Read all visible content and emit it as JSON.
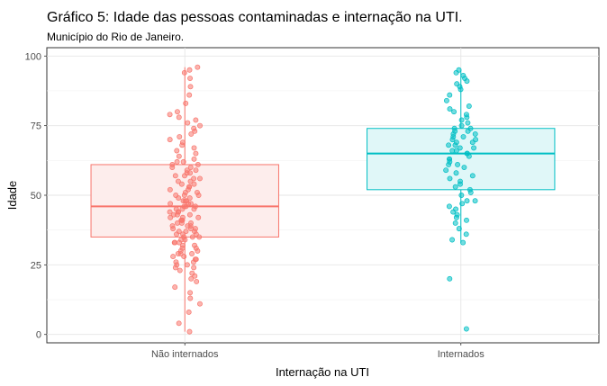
{
  "chart_data": {
    "type": "boxplot",
    "title": "Gráfico 5: Idade das pessoas contaminadas e internação na UTI.",
    "subtitle": "Município do Rio de Janeiro.",
    "xlabel": "Internação na UTI",
    "ylabel": "Idade",
    "ylim": [
      -3,
      103
    ],
    "yticks": [
      "0",
      "25",
      "50",
      "75",
      "100"
    ],
    "grid": true,
    "legend": "none",
    "categories": [
      "Não internados",
      "Internados"
    ],
    "series": [
      {
        "color": "#F8766D",
        "fill": "#FDEDEC",
        "box": {
          "min": 1,
          "q1": 35,
          "median": 46,
          "q3": 61,
          "max": 96
        },
        "points": [
          1,
          4,
          8,
          11,
          13,
          15,
          17,
          19,
          20,
          21,
          22,
          23,
          24,
          24,
          25,
          25,
          26,
          26,
          27,
          27,
          28,
          28,
          29,
          29,
          29,
          30,
          30,
          31,
          31,
          32,
          32,
          33,
          33,
          33,
          34,
          34,
          35,
          35,
          35,
          36,
          36,
          36,
          37,
          37,
          37,
          38,
          38,
          38,
          39,
          39,
          39,
          40,
          40,
          40,
          41,
          41,
          41,
          42,
          42,
          42,
          43,
          43,
          43,
          44,
          44,
          44,
          45,
          45,
          45,
          46,
          46,
          46,
          47,
          47,
          47,
          48,
          48,
          48,
          49,
          49,
          50,
          50,
          50,
          51,
          51,
          52,
          52,
          53,
          53,
          54,
          54,
          55,
          55,
          56,
          56,
          57,
          57,
          58,
          58,
          59,
          59,
          60,
          60,
          61,
          61,
          62,
          62,
          63,
          64,
          65,
          66,
          67,
          68,
          69,
          70,
          71,
          72,
          73,
          74,
          75,
          76,
          77,
          78,
          79,
          80,
          83,
          86,
          89,
          92,
          94,
          95,
          96
        ]
      },
      {
        "color": "#00BFC4",
        "fill": "#E0F7F8",
        "box": {
          "min": 33,
          "q1": 52,
          "median": 65,
          "q3": 74,
          "max": 95
        },
        "points": [
          2,
          20,
          33,
          34,
          36,
          38,
          40,
          41,
          42,
          43,
          44,
          45,
          46,
          47,
          48,
          48,
          50,
          51,
          52,
          53,
          54,
          55,
          56,
          57,
          58,
          59,
          60,
          61,
          61,
          62,
          63,
          63,
          64,
          65,
          65,
          66,
          66,
          67,
          67,
          68,
          68,
          69,
          69,
          70,
          70,
          71,
          71,
          72,
          72,
          73,
          73,
          74,
          74,
          75,
          76,
          77,
          78,
          79,
          80,
          81,
          82,
          84,
          86,
          88,
          89,
          90,
          91,
          92,
          93,
          94,
          95
        ]
      }
    ]
  }
}
